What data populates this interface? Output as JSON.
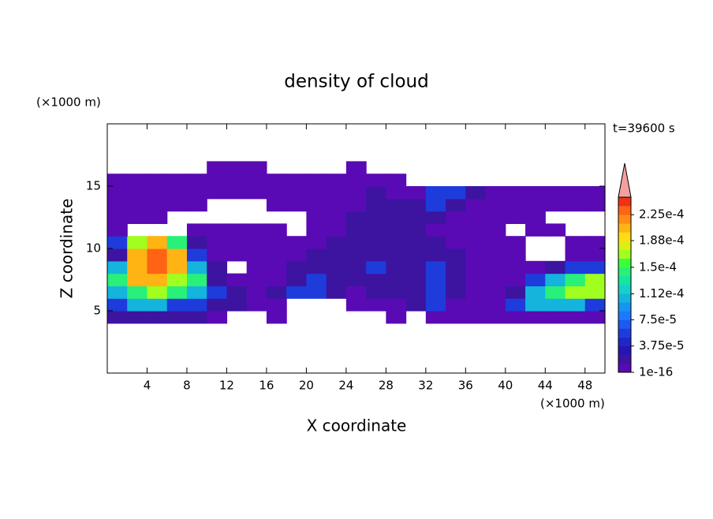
{
  "chart_data": {
    "type": "contour",
    "title": "density of cloud",
    "x_label": "X coordinate",
    "y_label": "Z coordinate",
    "x_unit": "(×1000 m)",
    "y_unit": "(×1000 m)",
    "annotation": "t=39600 s",
    "xlim": [
      0,
      50
    ],
    "xticks": [
      4,
      8,
      12,
      16,
      20,
      24,
      28,
      32,
      36,
      40,
      44,
      48
    ],
    "ylim": [
      0,
      20
    ],
    "yticks": [
      5,
      10,
      15
    ],
    "x": [
      1,
      3,
      5,
      7,
      9,
      11,
      13,
      15,
      17,
      19,
      21,
      23,
      25,
      27,
      29,
      31,
      33,
      35,
      37,
      39,
      41,
      43,
      45,
      47,
      49
    ],
    "y": [
      4.5,
      5.5,
      6.5,
      7.5,
      8.5,
      9.5,
      10.5,
      11.5,
      12.5,
      13.5,
      14.5,
      15.5,
      16.5
    ],
    "z": [
      [
        2e-05,
        2e-05,
        2e-05,
        2e-05,
        2e-05,
        5e-06,
        null,
        null,
        5e-06,
        null,
        null,
        null,
        null,
        null,
        5e-06,
        null,
        5e-06,
        5e-06,
        5e-06,
        5e-06,
        5e-06,
        5e-06,
        5e-06,
        5e-06,
        5e-06
      ],
      [
        6e-05,
        0.0001,
        0.0001,
        6e-05,
        6e-05,
        2e-05,
        2e-05,
        5e-06,
        5e-06,
        null,
        null,
        null,
        5e-06,
        5e-06,
        5e-06,
        2e-05,
        6e-05,
        5e-06,
        5e-06,
        5e-06,
        6e-05,
        0.0001,
        0.0001,
        0.0001,
        6e-05
      ],
      [
        0.0001,
        0.00014,
        0.00017,
        0.00014,
        0.0001,
        6e-05,
        2e-05,
        5e-06,
        2e-05,
        6e-05,
        6e-05,
        2e-05,
        5e-06,
        2e-05,
        2e-05,
        2e-05,
        6e-05,
        2e-05,
        5e-06,
        5e-06,
        2e-05,
        0.0001,
        0.00014,
        0.00017,
        0.00017
      ],
      [
        0.00014,
        0.0002,
        0.0002,
        0.00017,
        0.00014,
        2e-05,
        5e-06,
        5e-06,
        5e-06,
        2e-05,
        6e-05,
        2e-05,
        2e-05,
        2e-05,
        2e-05,
        2e-05,
        6e-05,
        2e-05,
        5e-06,
        5e-06,
        5e-06,
        6e-05,
        0.0001,
        0.00014,
        0.00017
      ],
      [
        0.0001,
        0.0002,
        0.00023,
        0.0002,
        0.0001,
        2e-05,
        null,
        5e-06,
        5e-06,
        2e-05,
        2e-05,
        2e-05,
        2e-05,
        6e-05,
        2e-05,
        2e-05,
        6e-05,
        2e-05,
        5e-06,
        5e-06,
        5e-06,
        5e-06,
        2e-05,
        6e-05,
        6e-05
      ],
      [
        2e-05,
        0.0002,
        0.00023,
        0.0002,
        6e-05,
        5e-06,
        5e-06,
        5e-06,
        5e-06,
        5e-06,
        2e-05,
        2e-05,
        2e-05,
        2e-05,
        2e-05,
        2e-05,
        2e-05,
        2e-05,
        5e-06,
        5e-06,
        5e-06,
        null,
        null,
        5e-06,
        5e-06
      ],
      [
        6e-05,
        0.00017,
        0.0002,
        0.00014,
        2e-05,
        5e-06,
        5e-06,
        5e-06,
        5e-06,
        5e-06,
        5e-06,
        2e-05,
        2e-05,
        2e-05,
        2e-05,
        2e-05,
        2e-05,
        5e-06,
        5e-06,
        5e-06,
        5e-06,
        null,
        null,
        5e-06,
        5e-06
      ],
      [
        5e-06,
        null,
        null,
        null,
        5e-06,
        5e-06,
        5e-06,
        5e-06,
        5e-06,
        null,
        5e-06,
        5e-06,
        2e-05,
        2e-05,
        2e-05,
        2e-05,
        5e-06,
        5e-06,
        5e-06,
        5e-06,
        null,
        5e-06,
        5e-06,
        null,
        null
      ],
      [
        5e-06,
        5e-06,
        5e-06,
        null,
        null,
        null,
        null,
        null,
        null,
        null,
        5e-06,
        5e-06,
        2e-05,
        2e-05,
        2e-05,
        2e-05,
        2e-05,
        5e-06,
        5e-06,
        5e-06,
        5e-06,
        5e-06,
        null,
        null,
        null
      ],
      [
        5e-06,
        5e-06,
        5e-06,
        5e-06,
        5e-06,
        null,
        null,
        null,
        5e-06,
        5e-06,
        5e-06,
        5e-06,
        5e-06,
        2e-05,
        2e-05,
        2e-05,
        6e-05,
        2e-05,
        5e-06,
        5e-06,
        5e-06,
        5e-06,
        5e-06,
        5e-06,
        5e-06
      ],
      [
        5e-06,
        5e-06,
        5e-06,
        5e-06,
        5e-06,
        5e-06,
        5e-06,
        5e-06,
        5e-06,
        5e-06,
        5e-06,
        5e-06,
        5e-06,
        2e-05,
        5e-06,
        5e-06,
        6e-05,
        6e-05,
        2e-05,
        5e-06,
        5e-06,
        5e-06,
        5e-06,
        5e-06,
        5e-06
      ],
      [
        5e-06,
        5e-06,
        5e-06,
        5e-06,
        5e-06,
        5e-06,
        5e-06,
        5e-06,
        5e-06,
        5e-06,
        5e-06,
        5e-06,
        5e-06,
        5e-06,
        5e-06,
        null,
        null,
        null,
        null,
        null,
        null,
        null,
        null,
        null,
        null
      ],
      [
        null,
        null,
        null,
        null,
        null,
        5e-06,
        5e-06,
        5e-06,
        null,
        null,
        null,
        null,
        5e-06,
        null,
        null,
        null,
        null,
        null,
        null,
        null,
        null,
        null,
        null,
        null,
        null
      ]
    ],
    "clim": [
      0,
      0.00025
    ],
    "colors": [
      "#5a0ab4",
      "#3c14a0",
      "#2814b4",
      "#1e28c8",
      "#1e3cdc",
      "#1e5af0",
      "#1e78ff",
      "#1496f0",
      "#14b4dc",
      "#14d2c8",
      "#14e6a0",
      "#28f078",
      "#3cff3c",
      "#a0ff1e",
      "#dcf014",
      "#ffdc14",
      "#ffb414",
      "#ff8c14",
      "#ff6414",
      "#f03214"
    ],
    "extend_color": "#f4a0a0",
    "cticks": [
      {
        "value": 1e-16,
        "label": "1e-16"
      },
      {
        "value": 3.75e-05,
        "label": "3.75e-5"
      },
      {
        "value": 7.5e-05,
        "label": "7.5e-5"
      },
      {
        "value": 0.000112,
        "label": "1.12e-4"
      },
      {
        "value": 0.00015,
        "label": "1.5e-4"
      },
      {
        "value": 0.000188,
        "label": "1.88e-4"
      },
      {
        "value": 0.000225,
        "label": "2.25e-4"
      }
    ]
  }
}
